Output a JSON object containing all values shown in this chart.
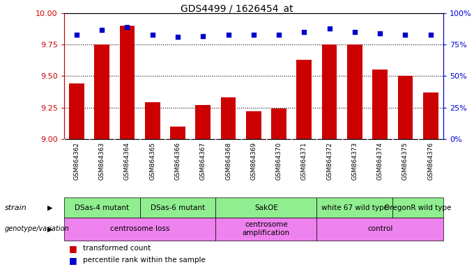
{
  "title": "GDS4499 / 1626454_at",
  "samples": [
    "GSM864362",
    "GSM864363",
    "GSM864364",
    "GSM864365",
    "GSM864366",
    "GSM864367",
    "GSM864368",
    "GSM864369",
    "GSM864370",
    "GSM864371",
    "GSM864372",
    "GSM864373",
    "GSM864374",
    "GSM864375",
    "GSM864376"
  ],
  "red_values": [
    9.44,
    9.75,
    9.9,
    9.29,
    9.1,
    9.27,
    9.33,
    9.22,
    9.24,
    9.63,
    9.75,
    9.75,
    9.55,
    9.5,
    9.37
  ],
  "blue_values": [
    83,
    87,
    89,
    83,
    81,
    82,
    83,
    83,
    83,
    85,
    88,
    85,
    84,
    83,
    83
  ],
  "ylim_left": [
    9.0,
    10.0
  ],
  "ylim_right": [
    0,
    100
  ],
  "yticks_left": [
    9.0,
    9.25,
    9.5,
    9.75,
    10.0
  ],
  "yticks_right": [
    0,
    25,
    50,
    75,
    100
  ],
  "grid_lines": [
    9.25,
    9.5,
    9.75
  ],
  "strain_labels": [
    {
      "text": "DSas-4 mutant",
      "start": 0,
      "end": 2,
      "color": "#90ee90"
    },
    {
      "text": "DSas-6 mutant",
      "start": 3,
      "end": 5,
      "color": "#90ee90"
    },
    {
      "text": "SakOE",
      "start": 6,
      "end": 9,
      "color": "#90ee90"
    },
    {
      "text": "white 67 wild type",
      "start": 10,
      "end": 12,
      "color": "#90ee90"
    },
    {
      "text": "OregonR wild type",
      "start": 13,
      "end": 14,
      "color": "#90ee90"
    }
  ],
  "geno_labels": [
    {
      "text": "centrosome loss",
      "start": 0,
      "end": 5,
      "color": "#ee82ee"
    },
    {
      "text": "centrosome\namplification",
      "start": 6,
      "end": 9,
      "color": "#ee82ee"
    },
    {
      "text": "control",
      "start": 10,
      "end": 14,
      "color": "#ee82ee"
    }
  ],
  "bar_color": "#cc0000",
  "dot_color": "#0000cc",
  "legend_red": "transformed count",
  "legend_blue": "percentile rank within the sample",
  "left_axis_color": "#cc0000",
  "right_axis_color": "#0000cc",
  "tick_bg_color": "#d0d0d0",
  "cell_sep_color": "#ffffff"
}
